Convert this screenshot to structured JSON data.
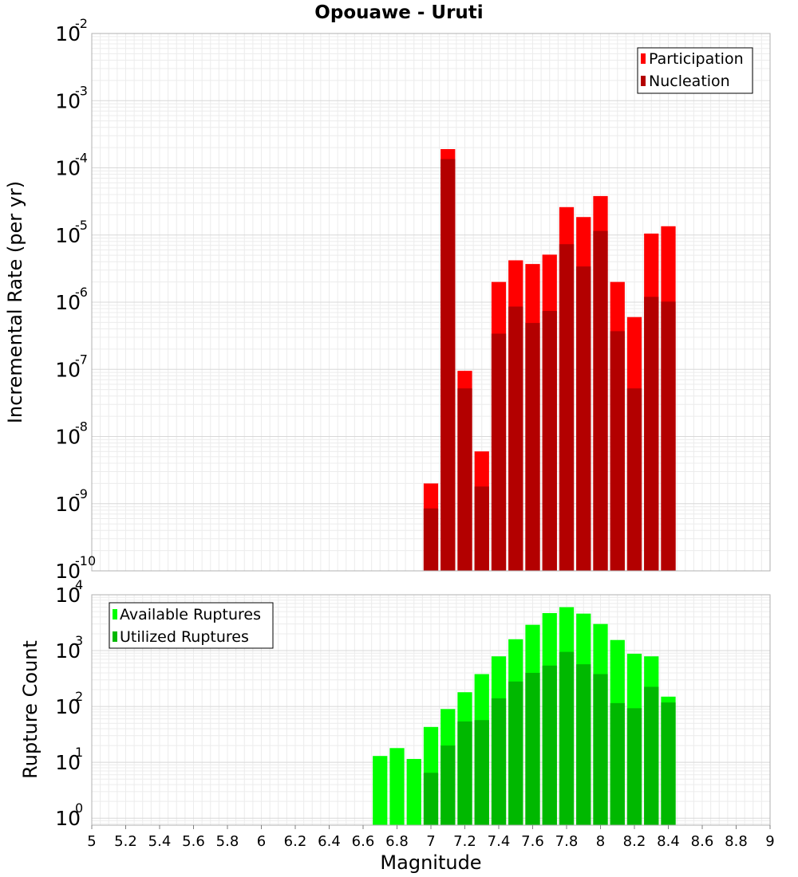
{
  "chart_data": [
    {
      "type": "bar",
      "title": "Opouawe - Uruti",
      "xlabel": "",
      "ylabel": "Incremental Rate (per yr)",
      "xlim": [
        5,
        9
      ],
      "ylim": [
        1e-10,
        0.01
      ],
      "yscale": "log",
      "y_tick_exponents": [
        -10,
        -9,
        -8,
        -7,
        -6,
        -5,
        -4,
        -3,
        -2
      ],
      "grid": true,
      "legend_position": "top-right",
      "x": [
        7.0,
        7.1,
        7.2,
        7.3,
        7.4,
        7.5,
        7.6,
        7.7,
        7.8,
        7.9,
        8.0,
        8.1,
        8.2,
        8.3,
        8.4
      ],
      "series": [
        {
          "name": "Participation",
          "color": "#ff0000",
          "values": [
            2e-09,
            0.00019,
            9.5e-08,
            6e-09,
            2e-06,
            4.2e-06,
            3.7e-06,
            5.1e-06,
            2.6e-05,
            1.85e-05,
            3.8e-05,
            2e-06,
            6e-07,
            1.05e-05,
            1.35e-05
          ]
        },
        {
          "name": "Nucleation",
          "color": "#b30000",
          "values": [
            8.5e-10,
            0.000135,
            5.2e-08,
            1.8e-09,
            3.4e-07,
            8.6e-07,
            4.9e-07,
            7.4e-07,
            7.3e-06,
            3.4e-06,
            1.15e-05,
            3.7e-07,
            5.2e-08,
            1.2e-06,
            1.02e-06
          ]
        }
      ]
    },
    {
      "type": "bar",
      "title": "",
      "xlabel": "Magnitude",
      "ylabel": "Rupture Count",
      "xlim": [
        5,
        9
      ],
      "x_ticks": [
        "5",
        "5.2",
        "5.4",
        "5.6",
        "5.8",
        "6",
        "6.2",
        "6.4",
        "6.6",
        "6.8",
        "7",
        "7.2",
        "7.4",
        "7.6",
        "7.8",
        "8",
        "8.2",
        "8.4",
        "8.6",
        "8.8",
        "9"
      ],
      "ylim": [
        0.75,
        10000
      ],
      "yscale": "log",
      "y_tick_exponents": [
        0,
        1,
        2,
        3,
        4
      ],
      "grid": true,
      "legend_position": "top-left",
      "x": [
        6.7,
        6.8,
        6.9,
        7.0,
        7.1,
        7.2,
        7.3,
        7.4,
        7.5,
        7.6,
        7.7,
        7.8,
        7.9,
        8.0,
        8.1,
        8.2,
        8.3,
        8.4
      ],
      "series": [
        {
          "name": "Available Ruptures",
          "color": "#00ff00",
          "values": [
            13,
            18,
            11.5,
            43,
            90,
            180,
            380,
            790,
            1600,
            2900,
            4700,
            6000,
            4600,
            3000,
            1550,
            880,
            790,
            150
          ]
        },
        {
          "name": "Utilized Ruptures",
          "color": "#00b800",
          "values": [
            0,
            0,
            0,
            6.5,
            20,
            54,
            57,
            140,
            280,
            400,
            540,
            950,
            570,
            380,
            115,
            93,
            225,
            118
          ]
        }
      ]
    }
  ]
}
